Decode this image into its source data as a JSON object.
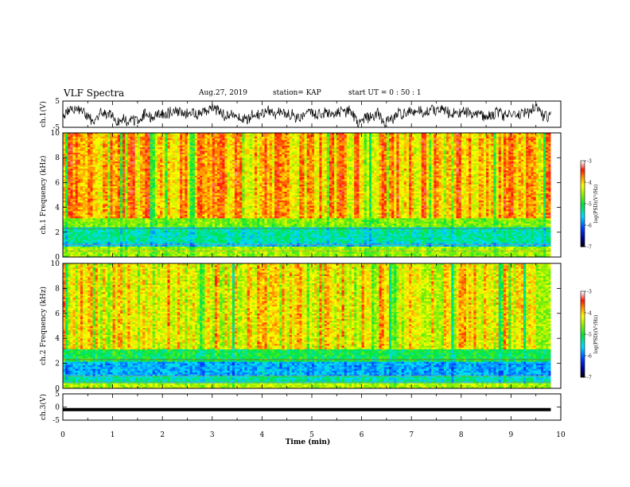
{
  "header": {
    "title": "VLF Spectra",
    "date": "Aug.27, 2019",
    "station": "station= KAP",
    "start": "start  UT  =   0  : 50 : 1"
  },
  "chart_data": [
    {
      "type": "line",
      "name": "ch1-waveform",
      "ylabel": "ch.1(V)",
      "ylim": [
        -5,
        5
      ],
      "yticks": [
        "5",
        "-5"
      ],
      "xlim": [
        0,
        10
      ]
    },
    {
      "type": "heatmap",
      "name": "ch1-spectrogram",
      "ylabel": "ch.1  Frequency  (kHz)",
      "ylim": [
        0,
        10
      ],
      "yticks": [
        "0",
        "2",
        "4",
        "6",
        "8",
        "10"
      ],
      "xlim": [
        0,
        10
      ],
      "data_extent_min": 9.8,
      "colorbar": {
        "label": "log(PSD)(V²/Hz)",
        "range": [
          -7,
          -3
        ],
        "ticks": [
          "-3",
          "-4",
          "-5",
          "-6",
          "-7"
        ]
      },
      "bands": [
        {
          "from_khz": 0,
          "to_khz": 0.8,
          "log_psd": -4.5
        },
        {
          "from_khz": 0.8,
          "to_khz": 1.2,
          "log_psd": -5.6
        },
        {
          "from_khz": 1.2,
          "to_khz": 2.5,
          "log_psd": -5.3
        },
        {
          "from_khz": 2.5,
          "to_khz": 3.2,
          "log_psd": -4.6
        },
        {
          "from_khz": 3.2,
          "to_khz": 10,
          "log_psd": -3.9
        }
      ]
    },
    {
      "type": "heatmap",
      "name": "ch2-spectrogram",
      "ylabel": "ch.2  Frequency  (kHz)",
      "ylim": [
        0,
        10
      ],
      "yticks": [
        "0",
        "2",
        "4",
        "6",
        "8",
        "10"
      ],
      "xlim": [
        0,
        10
      ],
      "data_extent_min": 9.8,
      "colorbar": {
        "label": "log(PSD)(V²/Hz)",
        "range": [
          -7,
          -3
        ],
        "ticks": [
          "-3",
          "-4",
          "-5",
          "-6",
          "-7"
        ]
      },
      "bands": [
        {
          "from_khz": 0,
          "to_khz": 0.4,
          "log_psd": -4.4
        },
        {
          "from_khz": 0.4,
          "to_khz": 1.0,
          "log_psd": -5.3
        },
        {
          "from_khz": 1.0,
          "to_khz": 2.2,
          "log_psd": -5.7
        },
        {
          "from_khz": 2.2,
          "to_khz": 3.2,
          "log_psd": -5.0
        },
        {
          "from_khz": 3.2,
          "to_khz": 10,
          "log_psd": -4.1
        }
      ]
    },
    {
      "type": "line",
      "name": "ch3-waveform",
      "ylabel": "ch.3(V)",
      "ylim": [
        -5,
        5
      ],
      "yticks": [
        "5",
        "0",
        "-5"
      ],
      "xlim": [
        0,
        10
      ],
      "value": -1
    }
  ],
  "xaxis": {
    "label": "Time  (min)",
    "ticks": [
      "0",
      "1",
      "2",
      "3",
      "4",
      "5",
      "6",
      "7",
      "8",
      "9",
      "10"
    ]
  }
}
